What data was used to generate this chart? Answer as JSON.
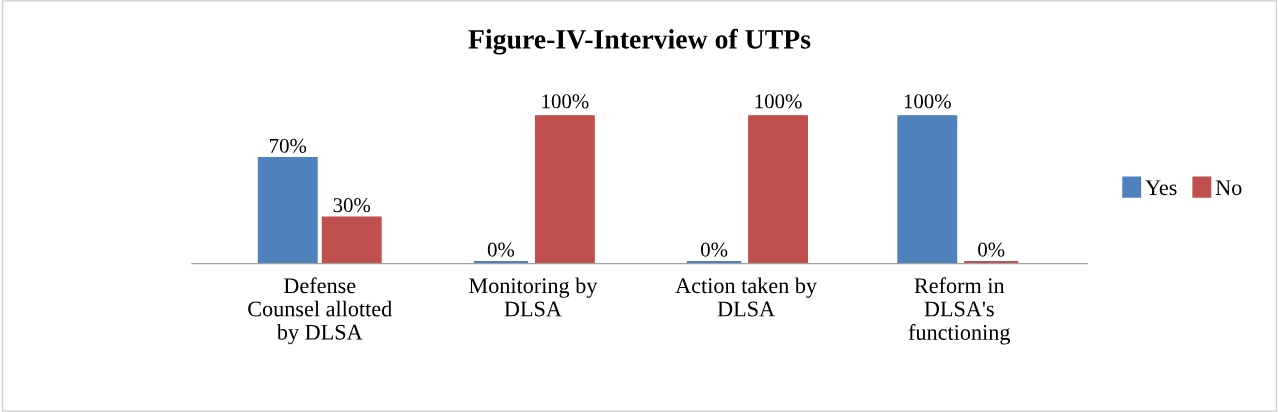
{
  "chart_data": {
    "type": "bar",
    "title": "Figure-IV-Interview of UTPs",
    "categories": [
      "Defense\nCounsel allotted\nby DLSA",
      "Monitoring by\nDLSA",
      "Action taken by\nDLSA",
      "Reform in\nDLSA's\nfunctioning"
    ],
    "series": [
      {
        "name": "Yes",
        "color": "#4f81bd",
        "values": [
          70,
          0,
          0,
          100
        ],
        "value_labels": [
          "70%",
          "0%",
          "0%",
          "100%"
        ]
      },
      {
        "name": "No",
        "color": "#c0504d",
        "values": [
          30,
          100,
          100,
          0
        ],
        "value_labels": [
          "30%",
          "100%",
          "100%",
          "0%"
        ]
      }
    ],
    "legend": "right",
    "grid": false
  }
}
